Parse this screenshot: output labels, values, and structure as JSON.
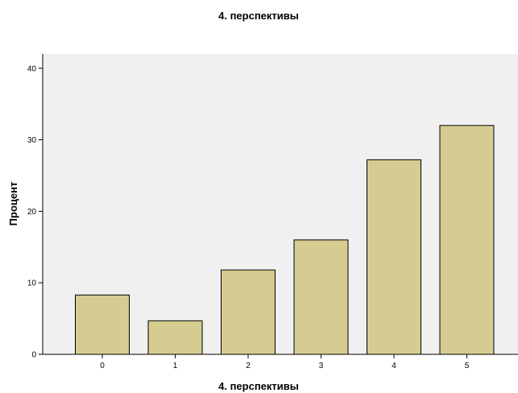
{
  "chart_data": {
    "type": "bar",
    "title": "4. перспективы",
    "xlabel": "4. перспективы",
    "ylabel": "Процент",
    "categories": [
      "0",
      "1",
      "2",
      "3",
      "4",
      "5"
    ],
    "values": [
      8.3,
      4.7,
      11.8,
      16.0,
      27.2,
      32.0
    ],
    "ylim": [
      0,
      42
    ],
    "yticks": [
      "0",
      "10",
      "20",
      "30",
      "40"
    ],
    "grid": false,
    "colors": {
      "plot_bg": "#f0f0f0",
      "bar_fill": "#d6cc92",
      "bar_stroke": "#000000"
    }
  }
}
